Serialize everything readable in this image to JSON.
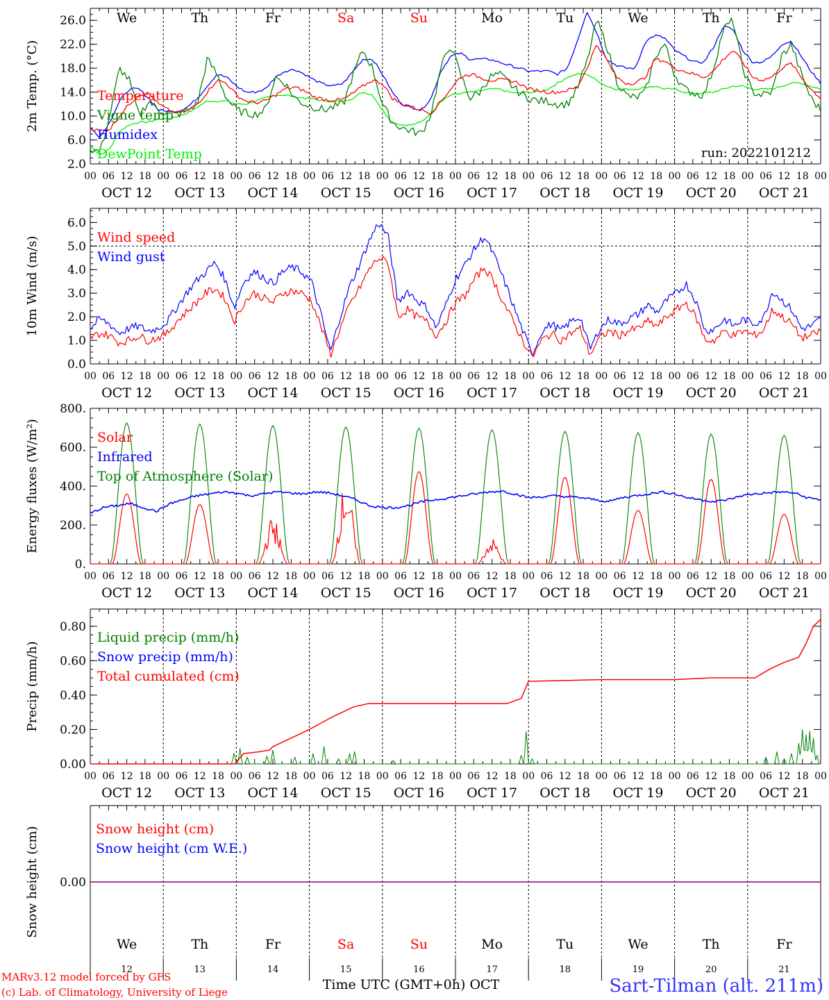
{
  "chart_data": [
    {
      "type": "line",
      "ylabel": "2m Temp. (°C)",
      "yticks": [
        "2.0",
        "6.0",
        "10.0",
        "14.0",
        "18.0",
        "22.0",
        "26.0"
      ],
      "ylim": [
        2,
        28
      ],
      "annotation": "run: 2022101212",
      "series": [
        {
          "name": "Temperature",
          "color": "#ff0000",
          "values": [
            8.0,
            7.5,
            7.8,
            10.0,
            12.0,
            13.6,
            13.8,
            12.0,
            11.0,
            10.5,
            10.8,
            12.0,
            14.0,
            16.0,
            15.5,
            13.5,
            12.5,
            12.2,
            12.5,
            13.5,
            14.5,
            14.8,
            14.2,
            13.2,
            12.8,
            12.6,
            12.8,
            13.8,
            15.0,
            16.0,
            15.5,
            13.0,
            12.0,
            11.5,
            11.0,
            10.5,
            12.5,
            14.5,
            16.5,
            17.0,
            16.5,
            16.0,
            16.0,
            16.0,
            15.5,
            14.5,
            14.3,
            14.0,
            14.0,
            14.3,
            14.8,
            18.0,
            22.0,
            19.5,
            16.5,
            15.5,
            15.5,
            16.5,
            19.5,
            19.2,
            18.0,
            17.5,
            17.0,
            16.5,
            17.5,
            19.5,
            21.0,
            19.0,
            16.5,
            16.0,
            16.5,
            18.0,
            18.8,
            16.5,
            14.5,
            13.0
          ]
        },
        {
          "name": "Vigne temp",
          "color": "#008000",
          "values": [
            4.5,
            4.0,
            10.0,
            18.0,
            16.0,
            10.0,
            12.5,
            11.0,
            10.5,
            10.2,
            11.0,
            12.0,
            19.5,
            17.0,
            13.0,
            11.0,
            10.5,
            10.3,
            11.0,
            16.5,
            15.5,
            13.0,
            12.0,
            11.5,
            11.0,
            11.5,
            12.0,
            17.0,
            21.0,
            18.0,
            12.0,
            9.0,
            8.0,
            7.5,
            7.0,
            10.5,
            18.0,
            22.0,
            17.0,
            13.0,
            14.0,
            16.5,
            17.0,
            15.5,
            14.0,
            13.0,
            12.5,
            12.5,
            12.0,
            12.0,
            14.5,
            19.0,
            26.0,
            22.0,
            16.0,
            13.5,
            13.0,
            14.0,
            20.0,
            22.0,
            17.0,
            14.5,
            13.8,
            13.5,
            18.0,
            24.5,
            26.0,
            18.0,
            14.0,
            13.5,
            14.0,
            20.0,
            22.0,
            17.0,
            13.0,
            11.0
          ]
        },
        {
          "name": "Humidex",
          "color": "#0000ff",
          "values": [
            8.0,
            6.5,
            9.0,
            12.5,
            14.5,
            14.5,
            13.0,
            11.0,
            10.8,
            10.8,
            11.5,
            13.0,
            15.0,
            17.0,
            16.5,
            15.0,
            14.0,
            14.0,
            14.5,
            16.5,
            17.5,
            17.8,
            17.0,
            16.0,
            15.3,
            15.0,
            15.5,
            17.5,
            19.5,
            19.5,
            17.0,
            14.0,
            12.0,
            11.5,
            11.0,
            13.0,
            17.5,
            20.0,
            20.5,
            19.5,
            19.5,
            19.5,
            19.0,
            18.5,
            18.0,
            17.5,
            17.5,
            17.5,
            17.0,
            18.0,
            22.5,
            27.5,
            24.0,
            19.5,
            18.5,
            18.0,
            18.0,
            22.5,
            23.5,
            23.0,
            21.0,
            20.0,
            19.0,
            19.0,
            21.5,
            25.0,
            24.5,
            21.0,
            19.0,
            19.0,
            20.0,
            22.0,
            22.5,
            20.0,
            17.5,
            15.5
          ]
        },
        {
          "name": "DewPoint Temp",
          "color": "#00ee00",
          "values": [
            5.0,
            3.5,
            4.5,
            7.5,
            8.5,
            9.0,
            9.0,
            9.5,
            9.5,
            10.0,
            10.5,
            11.5,
            12.5,
            12.5,
            12.5,
            12.0,
            12.0,
            12.5,
            13.0,
            13.5,
            13.5,
            13.2,
            13.0,
            12.8,
            12.5,
            12.5,
            12.5,
            13.0,
            14.0,
            13.5,
            11.0,
            9.0,
            8.5,
            8.5,
            9.0,
            10.5,
            12.5,
            13.5,
            13.8,
            14.0,
            14.2,
            14.5,
            14.5,
            14.0,
            13.8,
            14.0,
            14.0,
            14.5,
            15.5,
            16.5,
            17.0,
            17.0,
            16.0,
            15.0,
            14.5,
            14.5,
            14.5,
            14.8,
            15.0,
            14.5,
            14.5,
            14.0,
            13.8,
            13.8,
            14.0,
            14.5,
            15.0,
            15.0,
            14.5,
            14.5,
            14.5,
            15.0,
            15.5,
            15.5,
            15.0,
            14.5
          ]
        }
      ]
    },
    {
      "type": "line",
      "ylabel": "10m Wind (m/s)",
      "yticks": [
        "0.0",
        "1.0",
        "2.0",
        "3.0",
        "4.0",
        "5.0",
        "6.0"
      ],
      "ylim": [
        0,
        6.6
      ],
      "series": [
        {
          "name": "Wind speed",
          "color": "#ff0000",
          "values": [
            1.1,
            1.3,
            1.2,
            0.9,
            1.0,
            1.2,
            1.0,
            1.1,
            1.3,
            1.8,
            2.2,
            2.6,
            3.0,
            3.2,
            2.8,
            1.8,
            2.6,
            3.0,
            2.8,
            2.6,
            3.0,
            3.1,
            3.0,
            2.7,
            1.6,
            0.4,
            1.5,
            2.5,
            3.2,
            4.0,
            4.5,
            4.3,
            2.0,
            2.3,
            2.0,
            1.8,
            1.2,
            1.8,
            2.6,
            2.9,
            3.6,
            4.1,
            3.5,
            2.6,
            1.8,
            1.0,
            0.3,
            1.0,
            1.3,
            1.0,
            1.3,
            1.5,
            0.4,
            1.1,
            1.4,
            1.2,
            1.4,
            1.5,
            1.8,
            1.6,
            2.0,
            2.3,
            2.6,
            2.0,
            1.0,
            1.0,
            1.4,
            1.2,
            1.4,
            1.2,
            1.4,
            2.3,
            2.0,
            1.7,
            1.1,
            1.2,
            1.4
          ]
        },
        {
          "name": "Wind gust",
          "color": "#0000ff",
          "values": [
            1.5,
            1.9,
            1.7,
            1.3,
            1.5,
            1.6,
            1.4,
            1.5,
            1.8,
            2.4,
            3.0,
            3.5,
            3.9,
            4.3,
            3.6,
            2.4,
            3.5,
            3.9,
            3.7,
            3.4,
            3.9,
            4.1,
            3.9,
            3.5,
            2.1,
            0.5,
            2.0,
            3.3,
            4.2,
            5.2,
            6.0,
            5.4,
            2.6,
            3.1,
            2.7,
            2.4,
            1.5,
            2.5,
            3.6,
            4.2,
            4.9,
            5.4,
            4.6,
            3.6,
            2.5,
            1.4,
            0.4,
            1.4,
            1.7,
            1.4,
            1.8,
            2.0,
            0.6,
            1.5,
            1.9,
            1.7,
            1.9,
            2.1,
            2.5,
            2.2,
            2.7,
            3.0,
            3.4,
            2.7,
            1.4,
            1.5,
            1.9,
            1.6,
            1.9,
            1.7,
            1.9,
            3.1,
            2.7,
            2.3,
            1.5,
            1.6,
            1.9
          ]
        }
      ]
    },
    {
      "type": "line",
      "ylabel": "Energy fluxes (W/m²)",
      "yticks": [
        "0.",
        "200.",
        "400.",
        "600.",
        "800."
      ],
      "ylim": [
        0,
        800
      ],
      "series": [
        {
          "name": "Solar",
          "color": "#ff0000",
          "peaks": [
            360,
            305,
            245,
            430,
            475,
            130,
            445,
            275,
            435,
            255
          ]
        },
        {
          "name": "Infrared",
          "color": "#0000ff",
          "values": [
            260,
            290,
            300,
            310,
            290,
            270,
            310,
            330,
            350,
            360,
            370,
            365,
            350,
            360,
            370,
            365,
            360,
            370,
            365,
            350,
            330,
            300,
            290,
            290,
            300,
            320,
            330,
            340,
            350,
            360,
            370,
            375,
            360,
            340,
            345,
            350,
            345,
            340,
            330,
            320,
            340,
            350,
            360,
            370,
            360,
            340,
            330,
            320,
            330,
            350,
            360,
            365,
            370,
            365,
            340,
            330
          ]
        },
        {
          "name": "Top of Atmosphere (Solar)",
          "color": "#008000",
          "peaks": [
            725,
            720,
            712,
            705,
            698,
            690,
            682,
            675,
            668,
            662
          ]
        }
      ]
    },
    {
      "type": "line",
      "ylabel": "Precip (mm/h)",
      "yticks": [
        "0.00",
        "0.20",
        "0.40",
        "0.60",
        "0.80"
      ],
      "ylim": [
        0,
        0.9
      ],
      "series": [
        {
          "name": "Liquid precip (mm/h)",
          "color": "#008000",
          "spikes": [
            [
              1.97,
              0.07
            ],
            [
              2.05,
              0.09
            ],
            [
              2.15,
              0.04
            ],
            [
              2.42,
              0.05
            ],
            [
              2.5,
              0.08
            ],
            [
              2.8,
              0.04
            ],
            [
              3.05,
              0.06
            ],
            [
              3.2,
              0.1
            ],
            [
              3.4,
              0.03
            ],
            [
              3.55,
              0.06
            ],
            [
              3.62,
              0.08
            ],
            [
              4.15,
              0.02
            ],
            [
              5.9,
              0.05
            ],
            [
              5.97,
              0.21
            ],
            [
              6.05,
              0.03
            ],
            [
              9.25,
              0.04
            ],
            [
              9.4,
              0.07
            ],
            [
              9.5,
              0.03
            ],
            [
              9.6,
              0.06
            ],
            [
              9.7,
              0.12
            ],
            [
              9.75,
              0.2
            ],
            [
              9.8,
              0.17
            ],
            [
              9.85,
              0.19
            ],
            [
              9.9,
              0.15
            ],
            [
              9.95,
              0.05
            ]
          ]
        },
        {
          "name": "Snow precip (mm/h)",
          "color": "#0000ff",
          "spikes": []
        },
        {
          "name": "Total cumulated (cm)",
          "color": "#ff0000",
          "points": [
            [
              0,
              0
            ],
            [
              1.98,
              0
            ],
            [
              2.1,
              0.06
            ],
            [
              2.3,
              0.07
            ],
            [
              2.45,
              0.08
            ],
            [
              2.5,
              0.1
            ],
            [
              2.7,
              0.14
            ],
            [
              3.0,
              0.2
            ],
            [
              3.3,
              0.27
            ],
            [
              3.6,
              0.33
            ],
            [
              3.8,
              0.35
            ],
            [
              4.5,
              0.35
            ],
            [
              5.5,
              0.35
            ],
            [
              5.7,
              0.35
            ],
            [
              5.9,
              0.38
            ],
            [
              6.0,
              0.48
            ],
            [
              7.0,
              0.49
            ],
            [
              8.0,
              0.49
            ],
            [
              8.5,
              0.5
            ],
            [
              9.1,
              0.5
            ],
            [
              9.3,
              0.55
            ],
            [
              9.5,
              0.59
            ],
            [
              9.7,
              0.62
            ],
            [
              9.8,
              0.7
            ],
            [
              9.9,
              0.8
            ],
            [
              10.0,
              0.84
            ]
          ]
        }
      ]
    },
    {
      "type": "line",
      "ylabel": "Snow height (cm)",
      "yticks": [
        "0.00"
      ],
      "series": [
        {
          "name": "Snow height (cm)",
          "color": "#ff0000",
          "values": [
            0,
            0
          ]
        },
        {
          "name": "Snow height (cm W.E.)",
          "color": "#0000ff",
          "values": [
            0,
            0
          ]
        }
      ]
    }
  ],
  "hour_labels": [
    "00",
    "06",
    "12",
    "18"
  ],
  "hour_end_label": "00",
  "dates": [
    "OCT 12",
    "OCT 13",
    "OCT 14",
    "OCT 15",
    "OCT 16",
    "OCT 17",
    "OCT 18",
    "OCT 19",
    "OCT 20",
    "OCT 21"
  ],
  "weekdays": [
    {
      "label": "We",
      "color": "#000000"
    },
    {
      "label": "Th",
      "color": "#000000"
    },
    {
      "label": "Fr",
      "color": "#000000"
    },
    {
      "label": "Sa",
      "color": "#ff0000"
    },
    {
      "label": "Su",
      "color": "#ff0000"
    },
    {
      "label": "Mo",
      "color": "#000000"
    },
    {
      "label": "Tu",
      "color": "#000000"
    },
    {
      "label": "We",
      "color": "#000000"
    },
    {
      "label": "Th",
      "color": "#000000"
    },
    {
      "label": "Fr",
      "color": "#000000"
    }
  ],
  "day_numbers": [
    "12",
    "13",
    "14",
    "15",
    "16",
    "17",
    "18",
    "19",
    "20",
    "21"
  ],
  "xlabel": "Time UTC (GMT+0h) OCT",
  "footer": {
    "model": "MARv3.12 model forced by GFS",
    "credit": "(c) Lab. of Climatology, University of Liege",
    "station": "Sart-Tilman (alt. 211m)"
  }
}
